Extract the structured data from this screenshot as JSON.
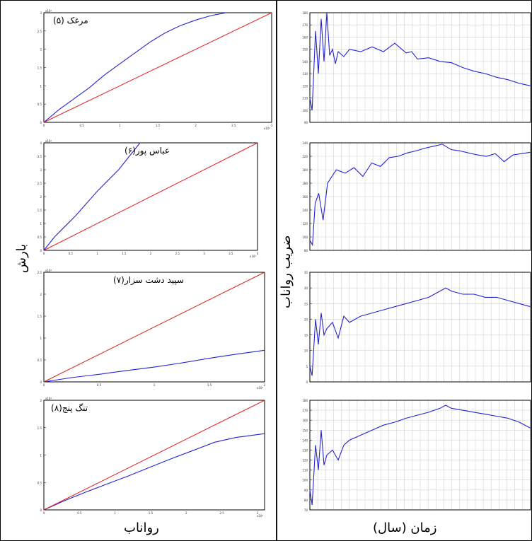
{
  "left_column": {
    "xlabel": "رواناب",
    "ylabel": "بارش"
  },
  "right_column": {
    "xlabel": "زمان (سال)",
    "ylabel": "ضریب رواناب"
  },
  "colors": {
    "series": "#2323d6",
    "reference": "#e02020",
    "grid": "#d2d2d2"
  },
  "chart_data": [
    {
      "type": "line",
      "title": "مرغک (۵)",
      "xlim": [
        0,
        3
      ],
      "ylim": [
        0,
        3
      ],
      "xticks": [
        "0",
        "0.5",
        "1",
        "1.5",
        "2",
        "2.5",
        "3"
      ],
      "yticks": [
        "0",
        "0.5",
        "1",
        "1.5",
        "2",
        "2.5",
        "3"
      ],
      "scale_note": "x10⁴",
      "series": [
        {
          "role": "cumulative",
          "x": [
            0,
            0.2,
            0.4,
            0.6,
            0.8,
            1.0,
            1.2,
            1.4,
            1.6,
            1.8,
            2.0,
            2.2,
            2.4
          ],
          "y": [
            0,
            0.35,
            0.65,
            0.95,
            1.3,
            1.6,
            1.9,
            2.2,
            2.45,
            2.65,
            2.8,
            2.92,
            3.0
          ]
        },
        {
          "role": "reference",
          "x": [
            0,
            3
          ],
          "y": [
            0,
            3
          ]
        }
      ]
    },
    {
      "type": "line",
      "title": "عباس پور(۶)",
      "xlim": [
        0,
        4
      ],
      "ylim": [
        0,
        4
      ],
      "xticks": [
        "0",
        "0.5",
        "1",
        "1.5",
        "2",
        "2.5",
        "3",
        "3.5",
        "4"
      ],
      "yticks": [
        "0",
        "0.5",
        "1",
        "1.5",
        "2",
        "2.5",
        "3",
        "3.5",
        "4"
      ],
      "scale_note": "x10⁴",
      "series": [
        {
          "role": "cumulative",
          "x": [
            0,
            0.2,
            0.4,
            0.6,
            0.8,
            1.0,
            1.2,
            1.4,
            1.6,
            1.8
          ],
          "y": [
            0,
            0.5,
            0.9,
            1.3,
            1.75,
            2.2,
            2.6,
            3.0,
            3.5,
            4.0
          ]
        },
        {
          "role": "reference",
          "x": [
            0,
            4
          ],
          "y": [
            0,
            4
          ]
        }
      ]
    },
    {
      "type": "line",
      "title": "سپید دشت سزار(۷)",
      "xlim": [
        0,
        2
      ],
      "ylim": [
        0,
        2.6
      ],
      "xticks": [
        "0",
        "0.5",
        "1",
        "1.5",
        "2"
      ],
      "yticks": [
        "0",
        "0.5",
        "1",
        "1.5",
        "2",
        "2.5"
      ],
      "scale_note": "x10⁴",
      "series": [
        {
          "role": "cumulative",
          "x": [
            0,
            0.25,
            0.5,
            0.75,
            1.0,
            1.25,
            1.5,
            1.75,
            2.0
          ],
          "y": [
            0,
            0.1,
            0.18,
            0.27,
            0.35,
            0.45,
            0.56,
            0.66,
            0.75
          ]
        },
        {
          "role": "reference",
          "x": [
            0,
            2
          ],
          "y": [
            0,
            2.6
          ]
        }
      ]
    },
    {
      "type": "line",
      "title": "تنگ پنج(۸)",
      "xlim": [
        0,
        3.1
      ],
      "ylim": [
        0,
        2.3
      ],
      "xticks": [
        "0",
        "0.5",
        "1",
        "1.5",
        "2",
        "2.5",
        "3"
      ],
      "yticks": [
        "0",
        "0.5",
        "1",
        "1.5",
        "2"
      ],
      "scale_note": "x10⁴",
      "series": [
        {
          "role": "cumulative",
          "x": [
            0,
            0.3,
            0.6,
            0.9,
            1.2,
            1.5,
            1.8,
            2.1,
            2.4,
            2.7,
            3.1
          ],
          "y": [
            0,
            0.2,
            0.38,
            0.55,
            0.72,
            0.9,
            1.08,
            1.25,
            1.42,
            1.52,
            1.6
          ]
        },
        {
          "role": "reference",
          "x": [
            0,
            3.1
          ],
          "y": [
            0,
            2.3
          ]
        }
      ]
    },
    {
      "type": "line",
      "xlim": [
        1973,
        2012
      ],
      "ylim": [
        90,
        180
      ],
      "yticks": [
        "90",
        "100",
        "110",
        "120",
        "130",
        "140",
        "150",
        "160",
        "170",
        "180"
      ],
      "series": [
        {
          "role": "runoff_coefficient",
          "x": [
            1973,
            1973.4,
            1974,
            1974.5,
            1975,
            1975.5,
            1976,
            1976.5,
            1977,
            1977.5,
            1978,
            1979,
            1980,
            1982,
            1984,
            1986,
            1988,
            1990,
            1991,
            1992,
            1994,
            1996,
            1998,
            2000,
            2002,
            2004,
            2006,
            2008,
            2010,
            2012
          ],
          "y": [
            110,
            100,
            165,
            130,
            175,
            140,
            180,
            145,
            150,
            138,
            148,
            144,
            150,
            148,
            152,
            148,
            155,
            147,
            148,
            142,
            143,
            140,
            139,
            135,
            132,
            130,
            127,
            125,
            122,
            120
          ]
        }
      ]
    },
    {
      "type": "line",
      "xlim": [
        1973,
        1998
      ],
      "ylim": [
        80,
        240
      ],
      "yticks": [
        "80",
        "100",
        "120",
        "140",
        "160",
        "180",
        "200",
        "220",
        "240"
      ],
      "series": [
        {
          "role": "runoff_coefficient",
          "x": [
            1973,
            1973.3,
            1973.6,
            1974,
            1974.5,
            1975,
            1976,
            1977,
            1978,
            1979,
            1980,
            1981,
            1982,
            1983,
            1984,
            1985,
            1986,
            1987,
            1988,
            1989,
            1990,
            1991,
            1992,
            1993,
            1994,
            1995,
            1996,
            1997,
            1998
          ],
          "y": [
            95,
            88,
            150,
            165,
            125,
            180,
            200,
            195,
            203,
            190,
            210,
            205,
            218,
            220,
            225,
            228,
            232,
            235,
            238,
            230,
            228,
            225,
            222,
            220,
            224,
            212,
            222,
            224,
            226
          ]
        }
      ]
    },
    {
      "type": "line",
      "xlim": [
        1973,
        2012
      ],
      "ylim": [
        0,
        35
      ],
      "yticks": [
        "0",
        "5",
        "10",
        "15",
        "20",
        "25",
        "30",
        "35"
      ],
      "series": [
        {
          "role": "runoff_coefficient",
          "x": [
            1973,
            1973.4,
            1974,
            1974.5,
            1975,
            1975.5,
            1976,
            1977,
            1978,
            1979,
            1980,
            1982,
            1984,
            1986,
            1988,
            1990,
            1992,
            1994,
            1996,
            1997,
            1998,
            2000,
            2002,
            2004,
            2006,
            2008,
            2010,
            2012
          ],
          "y": [
            5,
            2,
            20,
            12,
            22,
            15,
            17,
            19,
            14,
            21,
            19,
            21,
            22,
            23,
            24,
            25,
            26,
            27,
            29,
            30,
            29,
            28,
            28,
            27,
            27,
            26,
            25,
            24
          ]
        }
      ]
    },
    {
      "type": "line",
      "xlim": [
        1973,
        2012
      ],
      "ylim": [
        70,
        180
      ],
      "yticks": [
        "70",
        "80",
        "90",
        "100",
        "110",
        "120",
        "130",
        "140",
        "150",
        "160",
        "170",
        "180"
      ],
      "series": [
        {
          "role": "runoff_coefficient",
          "x": [
            1973,
            1973.4,
            1974,
            1974.5,
            1975,
            1975.5,
            1976,
            1977,
            1978,
            1979,
            1980,
            1982,
            1984,
            1986,
            1988,
            1990,
            1992,
            1994,
            1996,
            1997,
            1998,
            2000,
            2002,
            2004,
            2006,
            2008,
            2010,
            2012
          ],
          "y": [
            90,
            75,
            135,
            110,
            150,
            115,
            125,
            130,
            120,
            135,
            140,
            145,
            150,
            155,
            158,
            162,
            165,
            168,
            172,
            175,
            172,
            170,
            168,
            166,
            164,
            162,
            158,
            152
          ]
        }
      ]
    }
  ]
}
